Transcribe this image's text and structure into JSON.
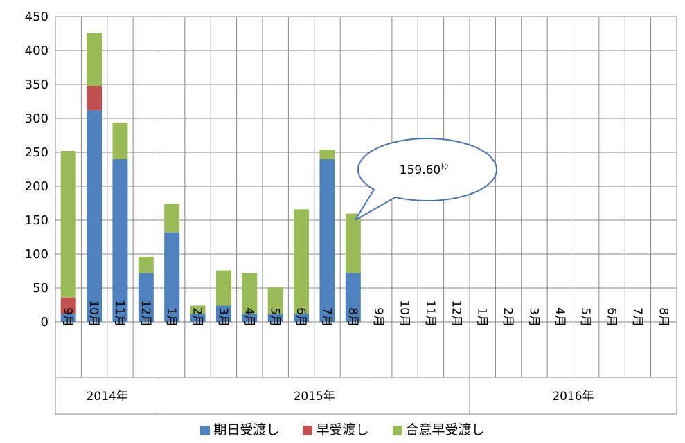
{
  "chart_data": {
    "type": "bar",
    "stacked": true,
    "categories": [
      "9月",
      "10月",
      "11月",
      "12月",
      "1月",
      "2月",
      "3月",
      "4月",
      "5月",
      "6月",
      "7月",
      "8月",
      "9月",
      "10月",
      "11月",
      "12月",
      "1月",
      "2月",
      "3月",
      "4月",
      "5月",
      "6月",
      "7月",
      "8月"
    ],
    "years": [
      {
        "label": "2014年",
        "start": 0,
        "count": 4
      },
      {
        "label": "2015年",
        "start": 4,
        "count": 12
      },
      {
        "label": "2016年",
        "start": 16,
        "count": 8
      }
    ],
    "series": [
      {
        "name": "期日受渡し",
        "color": "#4f81bd",
        "values": [
          12,
          312,
          240,
          72,
          132,
          12,
          24,
          12,
          12,
          12,
          240,
          72,
          0,
          0,
          0,
          0,
          0,
          0,
          0,
          0,
          0,
          0,
          0,
          0
        ]
      },
      {
        "name": "早受渡し",
        "color": "#c0504d",
        "values": [
          24,
          36,
          0,
          0,
          0,
          0,
          0,
          0,
          0,
          0,
          0,
          0,
          0,
          0,
          0,
          0,
          0,
          0,
          0,
          0,
          0,
          0,
          0,
          0
        ]
      },
      {
        "name": "合意早受渡し",
        "color": "#9bbb59",
        "values": [
          216,
          78,
          54,
          24,
          42,
          12,
          52,
          60,
          39,
          154,
          14,
          87.6,
          0,
          0,
          0,
          0,
          0,
          0,
          0,
          0,
          0,
          0,
          0,
          0
        ]
      }
    ],
    "ylim": [
      0,
      450
    ],
    "yticks": [
      0,
      50,
      100,
      150,
      200,
      250,
      300,
      350,
      400,
      450
    ],
    "grid": true,
    "legend_position": "bottom",
    "annotation": {
      "text": "159.60",
      "unit": "ﾄﾝ",
      "target_index": 11
    }
  }
}
